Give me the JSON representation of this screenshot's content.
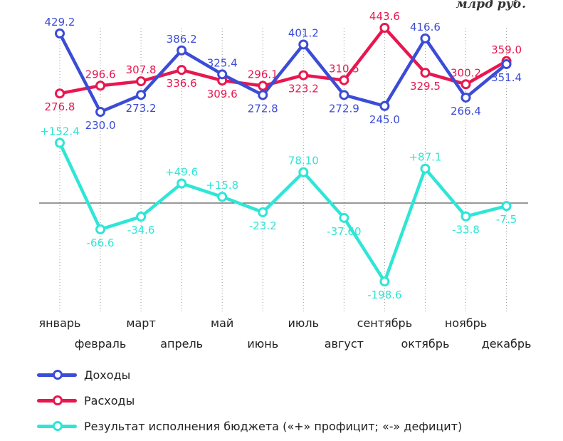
{
  "unit_label": "млрд руб.",
  "chart_data": {
    "type": "line",
    "categories": [
      "январь",
      "февраль",
      "март",
      "апрель",
      "май",
      "июнь",
      "июль",
      "август",
      "сентябрь",
      "октябрь",
      "ноябрь",
      "декабрь"
    ],
    "series": [
      {
        "name": "Доходы",
        "key": "income",
        "color": "#3b4cd6",
        "values": [
          429.2,
          230.0,
          273.2,
          386.2,
          325.4,
          272.8,
          401.2,
          272.9,
          245.0,
          416.6,
          266.4,
          351.4
        ],
        "labels": [
          "429.2",
          "230.0",
          "273.2",
          "386.2",
          "325.4",
          "272.8",
          "401.2",
          "272.9",
          "245.0",
          "416.6",
          "266.4",
          "351.4"
        ]
      },
      {
        "name": "Расходы",
        "key": "expense",
        "color": "#e8174f",
        "values": [
          276.8,
          296.6,
          307.8,
          336.6,
          309.6,
          296.1,
          323.2,
          310.5,
          443.6,
          329.5,
          300.2,
          359.0
        ],
        "labels": [
          "276.8",
          "296.6",
          "307.8",
          "336.6",
          "309.6",
          "296.1",
          "323.2",
          "310.5",
          "443.6",
          "329.5",
          "300.2",
          "359.0"
        ]
      },
      {
        "name": "Результат исполнения бюджета («+» профицит; «-» дефицит)",
        "key": "result",
        "color": "#2ee6d6",
        "values": [
          152.4,
          -66.6,
          -34.6,
          49.6,
          15.8,
          -23.2,
          78.1,
          -37.6,
          -198.6,
          87.1,
          -33.8,
          -7.5
        ],
        "labels": [
          "+152.4",
          "-66.6",
          "-34.6",
          "+49.6",
          "+15.8",
          "-23.2",
          "78.10",
          "-37.60",
          "-198.6",
          "+87.1",
          "-33.8",
          "-7.5"
        ]
      }
    ],
    "baseline": 0
  }
}
